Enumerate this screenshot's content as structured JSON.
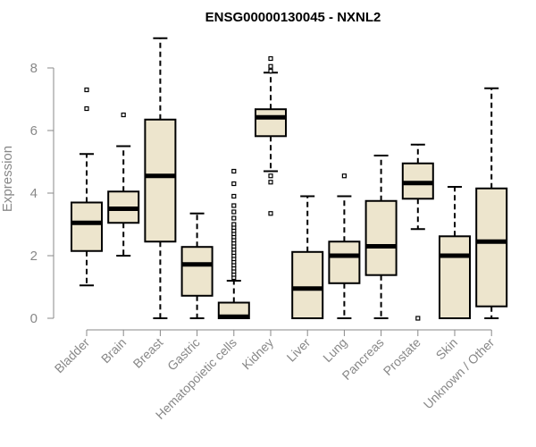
{
  "chart_data": {
    "type": "boxplot",
    "title": "ENSG00000130045 - NXNL2",
    "xlabel": "",
    "ylabel": "Expression",
    "ylim": [
      0,
      9
    ],
    "yticks": [
      0,
      2,
      4,
      6,
      8
    ],
    "colors": {
      "box_fill": "#ede5cd",
      "box_stroke": "#000000",
      "median": "#000000",
      "axis_text": "#888888"
    },
    "categories": [
      "Bladder",
      "Brain",
      "Breast",
      "Gastric",
      "Hematopoietic cells",
      "Kidney",
      "Liver",
      "Lung",
      "Pancreas",
      "Prostate",
      "Skin",
      "Unknown / Other"
    ],
    "boxes": [
      {
        "name": "Bladder",
        "whisker_low": 1.05,
        "q1": 2.15,
        "median": 3.05,
        "q3": 3.7,
        "whisker_high": 5.25,
        "outliers": [
          6.7,
          7.3
        ]
      },
      {
        "name": "Brain",
        "whisker_low": 2.0,
        "q1": 3.05,
        "median": 3.5,
        "q3": 4.05,
        "whisker_high": 5.5,
        "outliers": [
          6.5
        ]
      },
      {
        "name": "Breast",
        "whisker_low": 0.0,
        "q1": 2.45,
        "median": 4.55,
        "q3": 6.35,
        "whisker_high": 8.95,
        "outliers": []
      },
      {
        "name": "Gastric",
        "whisker_low": 0.0,
        "q1": 0.72,
        "median": 1.72,
        "q3": 2.28,
        "whisker_high": 3.35,
        "outliers": []
      },
      {
        "name": "Hematopoietic cells",
        "whisker_low": 0.0,
        "q1": 0.0,
        "median": 0.05,
        "q3": 0.5,
        "whisker_high": 1.2,
        "outliers": [
          1.3,
          1.4,
          1.5,
          1.6,
          1.7,
          1.8,
          1.9,
          2.0,
          2.1,
          2.2,
          2.3,
          2.4,
          2.5,
          2.6,
          2.7,
          2.8,
          2.9,
          3.0,
          3.2,
          3.4,
          3.6,
          3.9,
          4.3,
          4.7
        ]
      },
      {
        "name": "Kidney",
        "whisker_low": 4.7,
        "q1": 5.82,
        "median": 6.42,
        "q3": 6.68,
        "whisker_high": 7.85,
        "outliers": [
          3.35,
          4.35,
          4.55,
          7.9,
          8.05,
          8.3
        ]
      },
      {
        "name": "Liver",
        "whisker_low": 0.0,
        "q1": 0.0,
        "median": 0.95,
        "q3": 2.12,
        "whisker_high": 3.9,
        "outliers": []
      },
      {
        "name": "Lung",
        "whisker_low": 0.0,
        "q1": 1.12,
        "median": 2.0,
        "q3": 2.45,
        "whisker_high": 3.9,
        "outliers": [
          4.55
        ]
      },
      {
        "name": "Pancreas",
        "whisker_low": 0.0,
        "q1": 1.38,
        "median": 2.3,
        "q3": 3.75,
        "whisker_high": 5.2,
        "outliers": []
      },
      {
        "name": "Prostate",
        "whisker_low": 2.85,
        "q1": 3.82,
        "median": 4.32,
        "q3": 4.95,
        "whisker_high": 5.55,
        "outliers": [
          0.0
        ]
      },
      {
        "name": "Skin",
        "whisker_low": 0.0,
        "q1": 0.0,
        "median": 2.0,
        "q3": 2.62,
        "whisker_high": 4.2,
        "outliers": []
      },
      {
        "name": "Unknown / Other",
        "whisker_low": 0.0,
        "q1": 0.38,
        "median": 2.45,
        "q3": 4.15,
        "whisker_high": 7.35,
        "outliers": []
      }
    ]
  }
}
